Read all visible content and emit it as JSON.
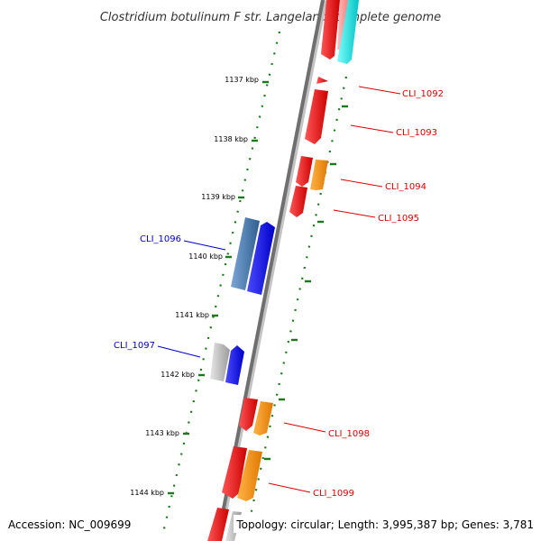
{
  "title": "Clostridium botulinum F str. Langeland, complete genome",
  "footer": {
    "accession": "Accession: NC_009699",
    "summary": "Topology: circular; Length: 3,995,387 bp; Genes: 3,781"
  },
  "colors": {
    "backbone": "#7a7a7a",
    "tick": "#1a7a1a",
    "forward_red": "#ee1111",
    "forward_orange": "#ff8c00",
    "cyan": "#00e5e5",
    "pink": "#ff9999",
    "reverse_blue": "#1010ee",
    "reverse_steel": "#4f7fb0",
    "reverse_gray": "#bdbdbd",
    "label_red": "#dd0000",
    "label_blue": "#0000cc"
  },
  "ruler": {
    "ticks": [
      "1137 kbp",
      "1138 kbp",
      "1139 kbp",
      "1140 kbp",
      "1141 kbp",
      "1142 kbp",
      "1143 kbp",
      "1144 kbp"
    ]
  },
  "genes": {
    "forward_labels": [
      "CLI_1092",
      "CLI_1093",
      "CLI_1094",
      "CLI_1095",
      "CLI_1098",
      "CLI_1099"
    ],
    "reverse_labels": [
      "CLI_1096",
      "CLI_1097"
    ]
  }
}
